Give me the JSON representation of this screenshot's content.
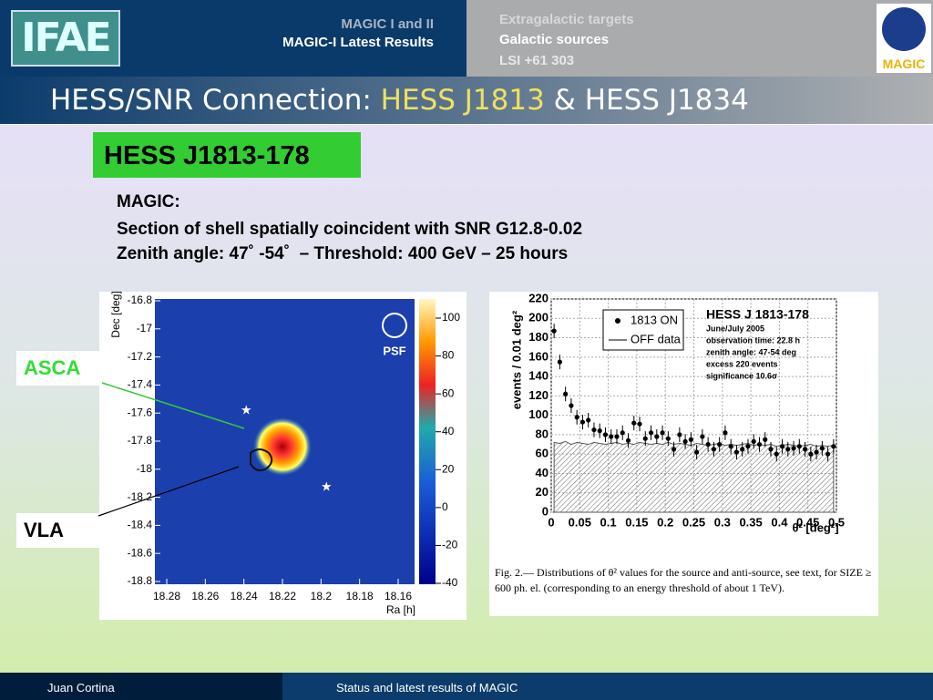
{
  "header": {
    "logo": "IFAE",
    "nav_left": [
      "MAGIC I and II",
      "MAGIC-I Latest Results"
    ],
    "nav_right": [
      "Extragalactic targets",
      "Galactic sources",
      "LSI +61 303"
    ],
    "logo_right": "MAGIC",
    "title": [
      "HESS/SNR Connection: ",
      "HESS J1813",
      " & HESS J1834"
    ]
  },
  "section": "HESS J1813-178",
  "magic": [
    "MAGIC:",
    "Section of shell spatially coincident with SNR G12.8-0.02",
    "Zenith angle: 47˚ -54˚  – Threshold: 400 GeV – 25 hours"
  ],
  "labels": [
    "ASCA",
    "VLA"
  ],
  "skymap": {
    "ylabel": "Dec [deg]",
    "xlabel": "Ra [h]",
    "psf": "PSF",
    "yticks": [
      -16.8,
      -17,
      -17.2,
      -17.4,
      -17.6,
      -17.8,
      -18,
      -18.2,
      -18.4,
      -18.6,
      -18.8
    ],
    "xticks": [
      18.28,
      18.26,
      18.24,
      18.22,
      18.2,
      18.18,
      18.16
    ],
    "colorbar_ticks": [
      100,
      80,
      60,
      40,
      20,
      0,
      -20,
      -40
    ]
  },
  "theta_plot": {
    "ylabel": "events / 0.01 deg²",
    "xlabel": "θ² [deg²]",
    "yticks": [
      0,
      20,
      40,
      60,
      80,
      100,
      120,
      140,
      160,
      180,
      200,
      220
    ],
    "xticks": [
      0,
      0.05,
      0.1,
      0.15,
      0.2,
      0.25,
      0.3,
      0.35,
      0.4,
      0.45,
      0.5
    ],
    "legend": [
      "1813 ON",
      "OFF data"
    ],
    "info": [
      "HESS J 1813-178",
      "June/July 2005",
      "observation time: 22.8 h",
      "zenith angle: 47-54 deg",
      "excess 220 events",
      "significance 10.6σ"
    ],
    "x": [
      0.005,
      0.015,
      0.025,
      0.035,
      0.045,
      0.055,
      0.065,
      0.075,
      0.085,
      0.095,
      0.105,
      0.115,
      0.125,
      0.135,
      0.145,
      0.155,
      0.165,
      0.175,
      0.185,
      0.195,
      0.205,
      0.215,
      0.225,
      0.235,
      0.245,
      0.255,
      0.265,
      0.275,
      0.285,
      0.295,
      0.305,
      0.315,
      0.325,
      0.335,
      0.345,
      0.355,
      0.365,
      0.375,
      0.385,
      0.395,
      0.405,
      0.415,
      0.425,
      0.435,
      0.445,
      0.455,
      0.465,
      0.475,
      0.485,
      0.495
    ],
    "on": [
      187,
      155,
      122,
      110,
      98,
      93,
      95,
      85,
      84,
      80,
      78,
      78,
      82,
      74,
      92,
      91,
      76,
      82,
      78,
      82,
      76,
      65,
      80,
      73,
      75,
      62,
      78,
      70,
      65,
      70,
      82,
      68,
      62,
      65,
      68,
      73,
      70,
      75,
      65,
      60,
      68,
      65,
      66,
      68,
      65,
      60,
      62,
      66,
      60,
      68
    ],
    "off": [
      72,
      71,
      73,
      70,
      72,
      71,
      70,
      72,
      71,
      70,
      71,
      72,
      70,
      71,
      70,
      72,
      71,
      70,
      71,
      70,
      72,
      70,
      71,
      70,
      69,
      71,
      70,
      69,
      70,
      71,
      69,
      70,
      69,
      70,
      71,
      69,
      70,
      69,
      70,
      68,
      69,
      70,
      69,
      68,
      69,
      70,
      68,
      69,
      68,
      69
    ],
    "caption": "Fig. 2.— Distributions of θ² values for the source and anti-source, see text, for SIZE ≥ 600 ph. el. (corresponding to an energy threshold of about 1 TeV)."
  },
  "footer": [
    "Juan Cortina",
    "Status and latest results of MAGIC"
  ]
}
